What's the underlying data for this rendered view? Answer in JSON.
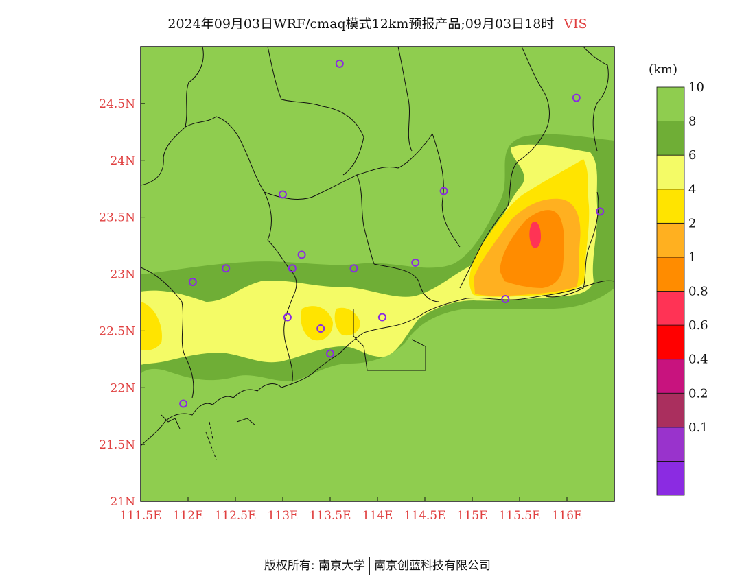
{
  "title": {
    "main": "2024年09月03日WRF/cmaq模式12km预报产品;09月03日18时",
    "variable": "VIS"
  },
  "axes": {
    "lon_ticks": [
      "111.5E",
      "112E",
      "112.5E",
      "113E",
      "113.5E",
      "114E",
      "114.5E",
      "115E",
      "115.5E",
      "116E"
    ],
    "lon_values": [
      111.5,
      112.0,
      112.5,
      113.0,
      113.5,
      114.0,
      114.5,
      115.0,
      115.5,
      116.0
    ],
    "lat_ticks": [
      "21N",
      "21.5N",
      "22N",
      "22.5N",
      "23N",
      "23.5N",
      "24N",
      "24.5N"
    ],
    "lat_values": [
      21.0,
      21.5,
      22.0,
      22.5,
      23.0,
      23.5,
      24.0,
      24.5
    ],
    "lon_range": [
      111.5,
      116.5
    ],
    "lat_range": [
      21.0,
      25.0
    ]
  },
  "legend": {
    "unit": "(km)",
    "levels": [
      {
        "label": "",
        "color": "#8b2be2"
      },
      {
        "label": "0.1",
        "color": "#9933cc"
      },
      {
        "label": "0.2",
        "color": "#aa2f5e"
      },
      {
        "label": "0.4",
        "color": "#c8137e"
      },
      {
        "label": "0.6",
        "color": "#ff0000"
      },
      {
        "label": "0.8",
        "color": "#ff3355"
      },
      {
        "label": "1",
        "color": "#ff8c00"
      },
      {
        "label": "2",
        "color": "#ffb020"
      },
      {
        "label": "4",
        "color": "#ffe400"
      },
      {
        "label": "6",
        "color": "#f4fb66"
      },
      {
        "label": "8",
        "color": "#6fae36"
      },
      {
        "label": "10",
        "color": "#8fcd4f"
      }
    ]
  },
  "stations": [
    {
      "lon": 113.6,
      "lat": 24.85
    },
    {
      "lon": 116.1,
      "lat": 24.55
    },
    {
      "lon": 113.0,
      "lat": 23.7
    },
    {
      "lon": 114.7,
      "lat": 23.73
    },
    {
      "lon": 116.35,
      "lat": 23.55
    },
    {
      "lon": 113.2,
      "lat": 23.17
    },
    {
      "lon": 112.4,
      "lat": 23.05
    },
    {
      "lon": 113.1,
      "lat": 23.05
    },
    {
      "lon": 113.75,
      "lat": 23.05
    },
    {
      "lon": 114.4,
      "lat": 23.1
    },
    {
      "lon": 112.05,
      "lat": 22.93
    },
    {
      "lon": 115.35,
      "lat": 22.78
    },
    {
      "lon": 113.05,
      "lat": 22.62
    },
    {
      "lon": 114.05,
      "lat": 22.62
    },
    {
      "lon": 113.4,
      "lat": 22.52
    },
    {
      "lon": 113.5,
      "lat": 22.3
    },
    {
      "lon": 111.95,
      "lat": 21.86
    }
  ],
  "footer": {
    "left": "版权所有: 南京大学",
    "right": "南京创蓝科技有限公司"
  }
}
